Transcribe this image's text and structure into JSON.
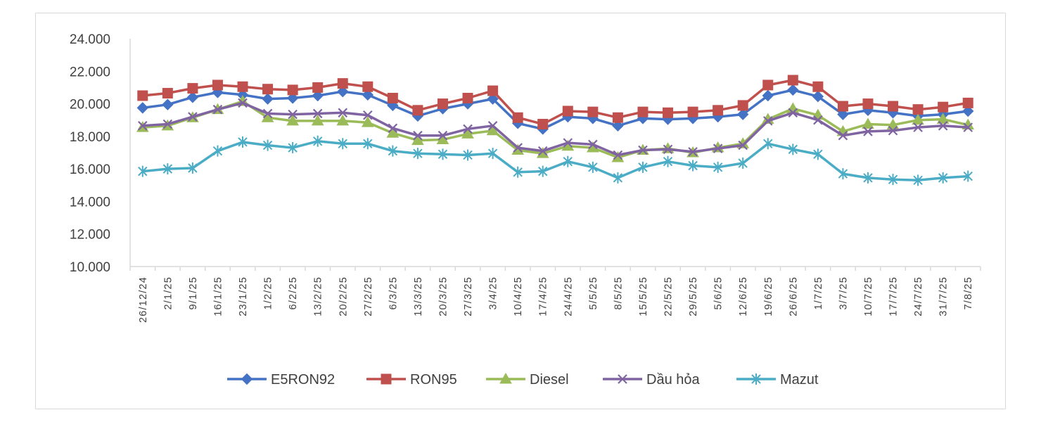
{
  "chart_data": {
    "type": "line",
    "title": "",
    "xlabel": "",
    "ylabel": "",
    "ylim": [
      10000,
      24000
    ],
    "y_ticks": [
      "24.000",
      "22.000",
      "20.000",
      "18.000",
      "16.000",
      "14.000",
      "12.000",
      "10.000"
    ],
    "y_tick_values": [
      24000,
      22000,
      20000,
      18000,
      16000,
      14000,
      12000,
      10000
    ],
    "grid": false,
    "legend_position": "bottom",
    "categories": [
      "26/12/24",
      "2/1/25",
      "9/1/25",
      "16/1/25",
      "23/1/25",
      "1/2/25",
      "6/2/25",
      "13/2/25",
      "20/2/25",
      "27/2/25",
      "6/3/25",
      "13/3/25",
      "20/3/25",
      "27/3/25",
      "3/4/25",
      "10/4/25",
      "17/4/25",
      "24/4/25",
      "5/5/25",
      "8/5/25",
      "15/5/25",
      "22/5/25",
      "29/5/25",
      "5/6/25",
      "12/6/25",
      "19/6/25",
      "26/6/25",
      "1/7/25",
      "3/7/25",
      "10/7/25",
      "17/7/25",
      "24/7/25",
      "31/7/25",
      "7/8/25"
    ],
    "series": [
      {
        "name": "E5RON92",
        "color": "#4472c4",
        "marker": "diamond",
        "values": [
          19750,
          19950,
          20400,
          20700,
          20550,
          20300,
          20350,
          20500,
          20750,
          20550,
          19900,
          19250,
          19700,
          20000,
          20300,
          18800,
          18450,
          19200,
          19100,
          18650,
          19100,
          19050,
          19100,
          19200,
          19350,
          20500,
          20850,
          20450,
          19350,
          19600,
          19450,
          19250,
          19350,
          19550
        ]
      },
      {
        "name": "RON95",
        "color": "#c0504d",
        "marker": "square",
        "values": [
          20500,
          20650,
          20950,
          21150,
          21050,
          20900,
          20850,
          21000,
          21250,
          21050,
          20350,
          19600,
          20000,
          20350,
          20800,
          19150,
          18750,
          19550,
          19500,
          19150,
          19500,
          19450,
          19500,
          19600,
          19900,
          21150,
          21450,
          21050,
          19850,
          20000,
          19850,
          19650,
          19800,
          20050
        ]
      },
      {
        "name": "Diesel",
        "color": "#9bbb59",
        "marker": "triangle",
        "values": [
          18550,
          18650,
          19150,
          19650,
          20150,
          19150,
          18950,
          18950,
          18950,
          18850,
          18200,
          17750,
          17800,
          18150,
          18350,
          17150,
          16950,
          17400,
          17300,
          16700,
          17150,
          17250,
          17000,
          17300,
          17550,
          19050,
          19700,
          19300,
          18300,
          18750,
          18700,
          19000,
          19050,
          18700
        ]
      },
      {
        "name": "Dầu hỏa",
        "color": "#8064a2",
        "marker": "x",
        "values": [
          18650,
          18750,
          19200,
          19650,
          20050,
          19400,
          19350,
          19400,
          19450,
          19300,
          18500,
          18050,
          18050,
          18450,
          18650,
          17300,
          17100,
          17600,
          17500,
          16850,
          17150,
          17200,
          17050,
          17250,
          17450,
          18950,
          19450,
          19000,
          18050,
          18300,
          18350,
          18550,
          18650,
          18550
        ]
      },
      {
        "name": "Mazut",
        "color": "#4bacc6",
        "marker": "asterisk",
        "values": [
          15850,
          16000,
          16050,
          17100,
          17650,
          17450,
          17300,
          17700,
          17550,
          17550,
          17100,
          16950,
          16900,
          16850,
          16950,
          15800,
          15850,
          16450,
          16100,
          15450,
          16100,
          16450,
          16200,
          16100,
          16350,
          17550,
          17200,
          16900,
          15700,
          15450,
          15350,
          15300,
          15450,
          15550
        ]
      }
    ]
  }
}
